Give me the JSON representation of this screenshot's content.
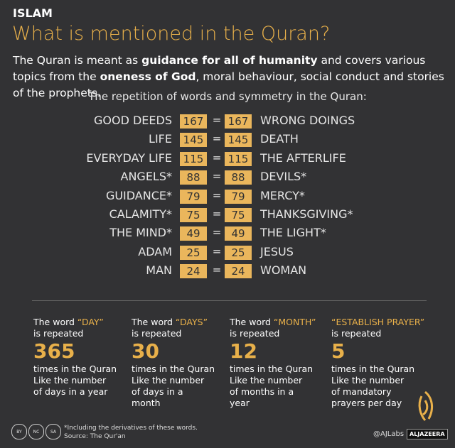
{
  "header": {
    "label": "ISLAM",
    "title": "What is mentioned in the Quran?",
    "intro": [
      {
        "text": "The Quran is meant as ",
        "bold": false
      },
      {
        "text": "guidance for all of humanity",
        "bold": true
      },
      {
        "text": " and covers various topics from the ",
        "bold": false
      },
      {
        "text": "oneness of God",
        "bold": true
      },
      {
        "text": ", moral behaviour, social conduct and stories of the prophets.",
        "bold": false
      }
    ]
  },
  "comparison": {
    "subtitle": "The repetition of words and symmetry in the Quran:",
    "equals": "=",
    "pairs": [
      {
        "left": "GOOD DEEDS",
        "left_count": 167,
        "right_count": 167,
        "right": "WRONG DOINGS"
      },
      {
        "left": "LIFE",
        "left_count": 145,
        "right_count": 145,
        "right": "DEATH"
      },
      {
        "left": "EVERYDAY LIFE",
        "left_count": 115,
        "right_count": 115,
        "right": "THE AFTERLIFE"
      },
      {
        "left": "ANGELS*",
        "left_count": 88,
        "right_count": 88,
        "right": "DEVILS*"
      },
      {
        "left": "GUIDANCE*",
        "left_count": 79,
        "right_count": 79,
        "right": "MERCY*"
      },
      {
        "left": "CALAMITY*",
        "left_count": 75,
        "right_count": 75,
        "right": "THANKSGIVING*"
      },
      {
        "left": "THE MIND*",
        "left_count": 49,
        "right_count": 49,
        "right": "THE LIGHT*"
      },
      {
        "left": "ADAM",
        "left_count": 25,
        "right_count": 25,
        "right": "JESUS"
      },
      {
        "left": "MAN",
        "left_count": 24,
        "right_count": 24,
        "right": "WOMAN"
      }
    ]
  },
  "facts": [
    {
      "lead": "The word ",
      "word": "“DAY”",
      "repeated": "is repeated",
      "number": 365,
      "times": "times in the Quran",
      "note": "Like the number of days in a year"
    },
    {
      "lead": "The word ",
      "word": "“DAYS”",
      "repeated": "is repeated",
      "number": 30,
      "times": "times in the Quran",
      "note": "Like the number of days in a month"
    },
    {
      "lead": "The word ",
      "word": "“MONTH”",
      "repeated": "is repeated",
      "number": 12,
      "times": "times in the Quran",
      "note": "Like the number of months in a year"
    },
    {
      "lead": "",
      "word": "“ESTABLISH PRAYER”",
      "repeated": "is repeated",
      "number": 5,
      "times": "times in the Quran",
      "note": "Like the number of mandatory prayers per day"
    }
  ],
  "footer": {
    "license": [
      "BY",
      "NC",
      "SA"
    ],
    "footnote": "*Including the derivatives of these words.",
    "source": "Source: The Qur'an",
    "handle": "@AJLabs",
    "brand": "ALJAZEERA"
  }
}
